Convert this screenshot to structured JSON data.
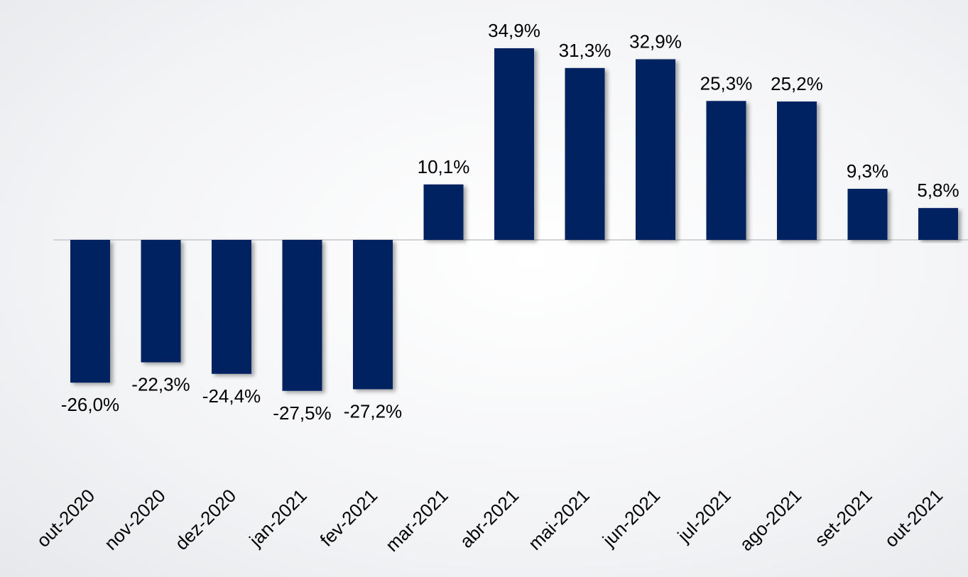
{
  "chart_data": {
    "type": "bar",
    "categories": [
      "out-2020",
      "nov-2020",
      "dez-2020",
      "jan-2021",
      "fev-2021",
      "mar-2021",
      "abr-2021",
      "mai-2021",
      "jun-2021",
      "jul-2021",
      "ago-2021",
      "set-2021",
      "out-2021"
    ],
    "values": [
      -26.0,
      -22.3,
      -24.4,
      -27.5,
      -27.2,
      10.1,
      34.9,
      31.3,
      32.9,
      25.3,
      25.2,
      9.3,
      5.8
    ],
    "value_labels": [
      "-26,0%",
      "-22,3%",
      "-24,4%",
      "-27,5%",
      "-27,2%",
      "10,1%",
      "34,9%",
      "31,3%",
      "32,9%",
      "25,3%",
      "25,2%",
      "9,3%",
      "5,8%"
    ],
    "color": "#002060"
  }
}
